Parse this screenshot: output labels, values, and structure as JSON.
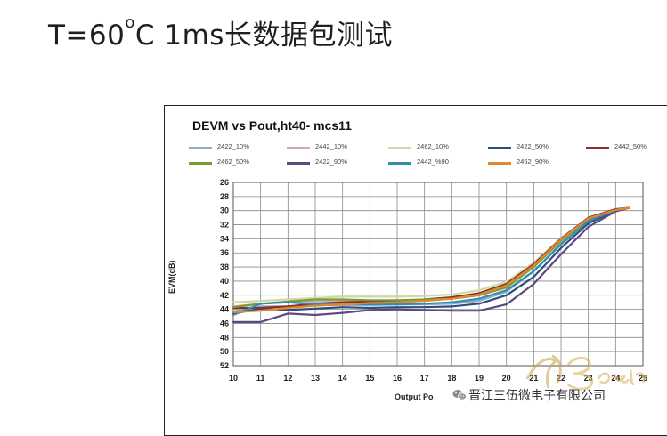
{
  "slide_title": {
    "prefix": "T=60",
    "superscript": "o",
    "suffix": "C 1ms长数据包测试"
  },
  "watermark": {
    "logo": "YiBoard",
    "account": "晋江三伍微电子有限公司"
  },
  "chart_data": {
    "type": "line",
    "title": "DEVM vs Pout,ht40- mcs11",
    "xlabel": "Output  Po",
    "ylabel": "EVM(dB)",
    "xlim": [
      10,
      25
    ],
    "ylim": [
      -52,
      -26
    ],
    "x_ticks": [
      10,
      11,
      12,
      13,
      14,
      15,
      16,
      17,
      18,
      19,
      20,
      21,
      22,
      23,
      24,
      25
    ],
    "x_tick_labels": [
      "10",
      "11",
      "12",
      "13",
      "14",
      "15",
      "16",
      "17",
      "18",
      "19",
      "20",
      "21",
      "22",
      "23",
      "24",
      "25"
    ],
    "y_ticks": [
      -26,
      -28,
      -30,
      -32,
      -34,
      -36,
      -38,
      -40,
      -42,
      -44,
      -46,
      -48,
      -50,
      -52
    ],
    "y_tick_labels": [
      "26",
      "28",
      "30",
      "32",
      "34",
      "36",
      "38",
      "40",
      "42",
      "44",
      "46",
      "48",
      "50",
      "52"
    ],
    "grid": true,
    "legend_position": "top",
    "x": [
      10,
      11,
      12,
      13,
      14,
      15,
      16,
      17,
      18,
      19,
      20,
      21,
      22,
      23,
      24,
      24.5
    ],
    "series": [
      {
        "name": "2422_10%",
        "color": "#9aa9c9",
        "values": [
          -44.3,
          -43.6,
          -43.6,
          -43.4,
          -43.4,
          -43.4,
          -43.3,
          -43.3,
          -43.2,
          -42.8,
          -41.5,
          -38.6,
          -34.7,
          -31.4,
          -29.9,
          -29.6
        ]
      },
      {
        "name": "2442_10%",
        "color": "#d8a8a8",
        "values": [
          -43.6,
          -43.2,
          -43.0,
          -42.9,
          -42.8,
          -42.8,
          -42.8,
          -42.7,
          -42.5,
          -42.0,
          -40.8,
          -38.0,
          -34.3,
          -31.3,
          -29.9,
          -29.6
        ]
      },
      {
        "name": "2462_10%",
        "color": "#cfd9a8",
        "values": [
          -43.0,
          -42.8,
          -42.6,
          -42.4,
          -42.2,
          -42.2,
          -42.2,
          -42.1,
          -41.9,
          -41.3,
          -40.1,
          -37.4,
          -33.9,
          -31.0,
          -29.8,
          -29.6
        ]
      },
      {
        "name": "2422_50%",
        "color": "#2e4f7e",
        "values": [
          -44.6,
          -43.9,
          -44.1,
          -43.9,
          -43.7,
          -43.8,
          -43.7,
          -43.7,
          -43.6,
          -43.2,
          -42.0,
          -39.4,
          -35.3,
          -31.8,
          -30.0,
          -29.6
        ]
      },
      {
        "name": "2442_50%",
        "color": "#8b2e2e",
        "values": [
          -43.8,
          -43.8,
          -43.6,
          -43.2,
          -43.0,
          -42.9,
          -42.8,
          -42.6,
          -42.3,
          -41.7,
          -40.4,
          -37.6,
          -34.0,
          -31.0,
          -29.8,
          -29.6
        ]
      },
      {
        "name": "2462_50%",
        "color": "#7a9a3a",
        "values": [
          -43.7,
          -43.2,
          -42.9,
          -42.6,
          -42.6,
          -42.7,
          -42.7,
          -42.6,
          -42.5,
          -42.0,
          -40.9,
          -38.0,
          -34.3,
          -31.2,
          -29.9,
          -29.6
        ]
      },
      {
        "name": "2422_90%",
        "color": "#5a4a82",
        "values": [
          -45.8,
          -45.8,
          -44.6,
          -44.8,
          -44.5,
          -44.1,
          -44.0,
          -44.1,
          -44.2,
          -44.2,
          -43.3,
          -40.4,
          -36.2,
          -32.3,
          -30.1,
          -29.6
        ]
      },
      {
        "name": "2442_%90",
        "color": "#2f8fb0",
        "values": [
          -44.8,
          -43.2,
          -43.0,
          -43.3,
          -43.2,
          -43.3,
          -43.3,
          -43.2,
          -43.0,
          -42.5,
          -41.3,
          -38.6,
          -34.8,
          -31.5,
          -29.9,
          -29.6
        ]
      },
      {
        "name": "2462_90%",
        "color": "#e08a30",
        "values": [
          -44.4,
          -44.2,
          -43.8,
          -43.5,
          -43.3,
          -43.1,
          -43.0,
          -42.8,
          -42.5,
          -41.9,
          -40.6,
          -37.8,
          -34.1,
          -31.1,
          -29.9,
          -29.6
        ]
      }
    ]
  }
}
